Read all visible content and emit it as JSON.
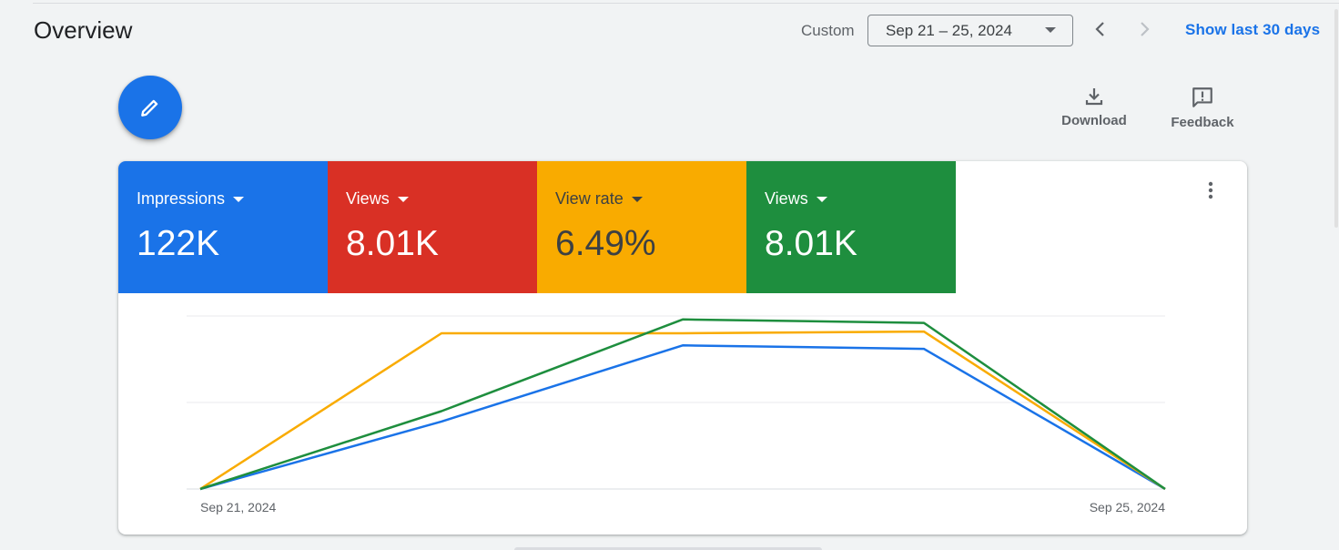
{
  "header": {
    "title": "Overview",
    "range_label": "Custom",
    "date_range": "Sep 21 – 25, 2024",
    "show_last_label": "Show last 30 days",
    "prev_icon": "chevron-left-icon",
    "next_icon": "chevron-right-icon"
  },
  "toolbar": {
    "edit_icon": "pencil-icon",
    "download_label": "Download",
    "feedback_label": "Feedback"
  },
  "metrics": [
    {
      "label": "Impressions",
      "value": "122K",
      "color": "#1a73e8"
    },
    {
      "label": "Views",
      "value": "8.01K",
      "color": "#d93025"
    },
    {
      "label": "View rate",
      "value": "6.49%",
      "color": "#f9ab00"
    },
    {
      "label": "Views",
      "value": "8.01K",
      "color": "#1e8e3e"
    }
  ],
  "chart_data": {
    "type": "line",
    "x": [
      "Sep 21, 2024",
      "Sep 22, 2024",
      "Sep 23, 2024",
      "Sep 24, 2024",
      "Sep 25, 2024"
    ],
    "x_tick_labels": [
      "Sep 21, 2024",
      "Sep 25, 2024"
    ],
    "series": [
      {
        "name": "Impressions",
        "color": "#1a73e8",
        "values": [
          0,
          0.39,
          0.83,
          0.81,
          0
        ]
      },
      {
        "name": "View rate",
        "color": "#f9ab00",
        "values": [
          0,
          0.9,
          0.9,
          0.91,
          0
        ]
      },
      {
        "name": "Views",
        "color": "#1e8e3e",
        "values": [
          0,
          0.45,
          0.98,
          0.96,
          0
        ]
      }
    ],
    "ylim": [
      0,
      1
    ],
    "grid": true,
    "legend": "none"
  }
}
